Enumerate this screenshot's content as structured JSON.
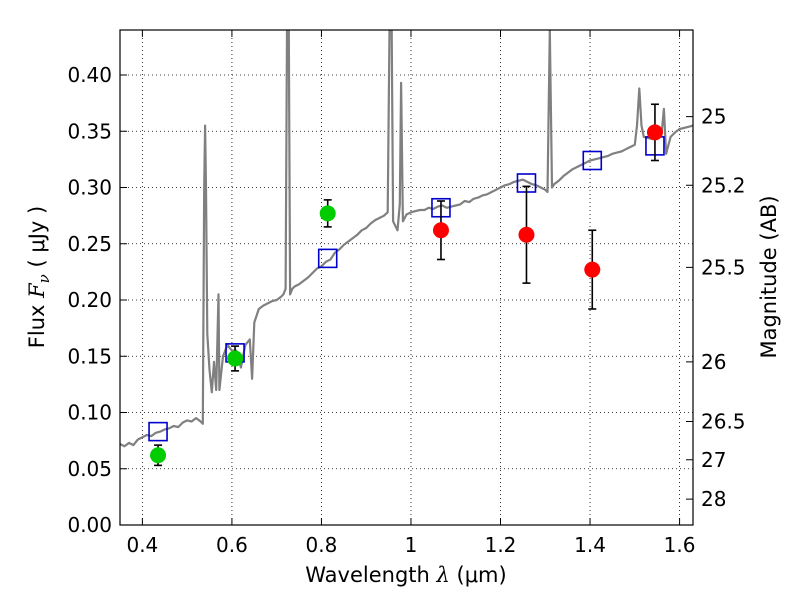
{
  "chart_data": {
    "type": "scatter",
    "xlabel": {
      "prefix": "Wavelength  ",
      "symbol": "λ",
      "unit": " (μm)"
    },
    "ylabel": {
      "prefix": "Flux  ",
      "symbol": "F",
      "subscript": "ν",
      "unit": "  ( μJy )"
    },
    "y2label": "Magnitude (AB)",
    "xlim": [
      0.35,
      1.63
    ],
    "ylim": [
      0.0,
      0.44
    ],
    "xticks": [
      0.4,
      0.6,
      0.8,
      1.0,
      1.2,
      1.4,
      1.6
    ],
    "xtick_labels": [
      "0.4",
      "0.6",
      "0.8",
      "1",
      "1.2",
      "1.4",
      "1.6"
    ],
    "yticks": [
      0.0,
      0.05,
      0.1,
      0.15,
      0.2,
      0.25,
      0.3,
      0.35,
      0.4
    ],
    "ytick_labels": [
      "0.00",
      "0.05",
      "0.10",
      "0.15",
      "0.20",
      "0.25",
      "0.30",
      "0.35",
      "0.40"
    ],
    "y2ticks": [
      {
        "label": "25",
        "flux": 0.363
      },
      {
        "label": "25.2",
        "flux": 0.302
      },
      {
        "label": "25.5",
        "flux": 0.229
      },
      {
        "label": "26",
        "flux": 0.145
      },
      {
        "label": "26.5",
        "flux": 0.092
      },
      {
        "label": "27",
        "flux": 0.058
      },
      {
        "label": "28",
        "flux": 0.023
      }
    ],
    "grid": true,
    "series": [
      {
        "kind": "spectrum",
        "color": "#808080",
        "points": [
          [
            0.35,
            0.072
          ],
          [
            0.36,
            0.07
          ],
          [
            0.37,
            0.073
          ],
          [
            0.38,
            0.071
          ],
          [
            0.39,
            0.076
          ],
          [
            0.4,
            0.078
          ],
          [
            0.41,
            0.08
          ],
          [
            0.42,
            0.079
          ],
          [
            0.43,
            0.082
          ],
          [
            0.44,
            0.083
          ],
          [
            0.45,
            0.085
          ],
          [
            0.46,
            0.086
          ],
          [
            0.47,
            0.088
          ],
          [
            0.48,
            0.087
          ],
          [
            0.49,
            0.091
          ],
          [
            0.5,
            0.093
          ],
          [
            0.51,
            0.092
          ],
          [
            0.52,
            0.095
          ],
          [
            0.53,
            0.092
          ],
          [
            0.535,
            0.09
          ],
          [
            0.538,
            0.3
          ],
          [
            0.54,
            0.355
          ],
          [
            0.542,
            0.3
          ],
          [
            0.545,
            0.17
          ],
          [
            0.55,
            0.138
          ],
          [
            0.555,
            0.118
          ],
          [
            0.56,
            0.145
          ],
          [
            0.565,
            0.12
          ],
          [
            0.57,
            0.205
          ],
          [
            0.572,
            0.12
          ],
          [
            0.58,
            0.15
          ],
          [
            0.59,
            0.16
          ],
          [
            0.6,
            0.155
          ],
          [
            0.61,
            0.155
          ],
          [
            0.62,
            0.14
          ],
          [
            0.63,
            0.16
          ],
          [
            0.64,
            0.165
          ],
          [
            0.645,
            0.13
          ],
          [
            0.65,
            0.18
          ],
          [
            0.66,
            0.192
          ],
          [
            0.67,
            0.195
          ],
          [
            0.68,
            0.197
          ],
          [
            0.69,
            0.199
          ],
          [
            0.7,
            0.2
          ],
          [
            0.71,
            0.203
          ],
          [
            0.715,
            0.205
          ],
          [
            0.72,
            0.21
          ],
          [
            0.723,
            0.44
          ],
          [
            0.727,
            0.44
          ],
          [
            0.73,
            0.205
          ],
          [
            0.735,
            0.21
          ],
          [
            0.74,
            0.212
          ],
          [
            0.75,
            0.214
          ],
          [
            0.76,
            0.217
          ],
          [
            0.77,
            0.22
          ],
          [
            0.78,
            0.224
          ],
          [
            0.79,
            0.228
          ],
          [
            0.8,
            0.23
          ],
          [
            0.81,
            0.234
          ],
          [
            0.82,
            0.236
          ],
          [
            0.83,
            0.242
          ],
          [
            0.84,
            0.245
          ],
          [
            0.85,
            0.249
          ],
          [
            0.86,
            0.252
          ],
          [
            0.87,
            0.255
          ],
          [
            0.88,
            0.258
          ],
          [
            0.89,
            0.262
          ],
          [
            0.9,
            0.264
          ],
          [
            0.91,
            0.268
          ],
          [
            0.92,
            0.271
          ],
          [
            0.93,
            0.273
          ],
          [
            0.94,
            0.275
          ],
          [
            0.948,
            0.278
          ],
          [
            0.952,
            0.44
          ],
          [
            0.957,
            0.44
          ],
          [
            0.96,
            0.27
          ],
          [
            0.97,
            0.262
          ],
          [
            0.975,
            0.285
          ],
          [
            0.978,
            0.393
          ],
          [
            0.982,
            0.27
          ],
          [
            0.99,
            0.276
          ],
          [
            1.0,
            0.278
          ],
          [
            1.01,
            0.279
          ],
          [
            1.02,
            0.28
          ],
          [
            1.03,
            0.28
          ],
          [
            1.04,
            0.282
          ],
          [
            1.05,
            0.281
          ],
          [
            1.06,
            0.283
          ],
          [
            1.07,
            0.284
          ],
          [
            1.08,
            0.282
          ],
          [
            1.09,
            0.283
          ],
          [
            1.1,
            0.284
          ],
          [
            1.11,
            0.285
          ],
          [
            1.12,
            0.288
          ],
          [
            1.13,
            0.287
          ],
          [
            1.14,
            0.29
          ],
          [
            1.15,
            0.291
          ],
          [
            1.16,
            0.293
          ],
          [
            1.17,
            0.294
          ],
          [
            1.18,
            0.296
          ],
          [
            1.19,
            0.298
          ],
          [
            1.2,
            0.3
          ],
          [
            1.21,
            0.302
          ],
          [
            1.22,
            0.303
          ],
          [
            1.23,
            0.305
          ],
          [
            1.24,
            0.306
          ],
          [
            1.25,
            0.307
          ],
          [
            1.26,
            0.305
          ],
          [
            1.27,
            0.303
          ],
          [
            1.28,
            0.302
          ],
          [
            1.29,
            0.3
          ],
          [
            1.3,
            0.298
          ],
          [
            1.305,
            0.296
          ],
          [
            1.31,
            0.44
          ],
          [
            1.315,
            0.3
          ],
          [
            1.32,
            0.303
          ],
          [
            1.33,
            0.306
          ],
          [
            1.34,
            0.31
          ],
          [
            1.35,
            0.313
          ],
          [
            1.36,
            0.316
          ],
          [
            1.37,
            0.318
          ],
          [
            1.38,
            0.32
          ],
          [
            1.39,
            0.322
          ],
          [
            1.4,
            0.324
          ],
          [
            1.41,
            0.325
          ],
          [
            1.42,
            0.326
          ],
          [
            1.43,
            0.327
          ],
          [
            1.44,
            0.328
          ],
          [
            1.45,
            0.33
          ],
          [
            1.46,
            0.331
          ],
          [
            1.47,
            0.332
          ],
          [
            1.48,
            0.334
          ],
          [
            1.49,
            0.336
          ],
          [
            1.5,
            0.338
          ],
          [
            1.505,
            0.355
          ],
          [
            1.51,
            0.388
          ],
          [
            1.515,
            0.355
          ],
          [
            1.52,
            0.345
          ],
          [
            1.53,
            0.344
          ],
          [
            1.54,
            0.343
          ],
          [
            1.55,
            0.346
          ],
          [
            1.56,
            0.349
          ],
          [
            1.565,
            0.37
          ],
          [
            1.57,
            0.33
          ],
          [
            1.58,
            0.345
          ],
          [
            1.59,
            0.349
          ],
          [
            1.6,
            0.352
          ],
          [
            1.61,
            0.353
          ],
          [
            1.62,
            0.354
          ],
          [
            1.63,
            0.355
          ]
        ]
      },
      {
        "kind": "open-square",
        "color": "#0000cc",
        "points": [
          {
            "x": 0.435,
            "y": 0.083
          },
          {
            "x": 0.607,
            "y": 0.153
          },
          {
            "x": 0.814,
            "y": 0.237
          },
          {
            "x": 1.067,
            "y": 0.282
          },
          {
            "x": 1.258,
            "y": 0.304
          },
          {
            "x": 1.405,
            "y": 0.324
          },
          {
            "x": 1.545,
            "y": 0.337
          }
        ]
      },
      {
        "kind": "filled-circle",
        "color": "#00cc00",
        "points": [
          {
            "x": 0.435,
            "y": 0.062,
            "err": 0.009
          },
          {
            "x": 0.607,
            "y": 0.148,
            "err": 0.011
          },
          {
            "x": 0.814,
            "y": 0.277,
            "err": 0.012
          }
        ]
      },
      {
        "kind": "filled-circle",
        "color": "#ff0000",
        "points": [
          {
            "x": 1.067,
            "y": 0.262,
            "err": 0.026
          },
          {
            "x": 1.258,
            "y": 0.258,
            "err": 0.043
          },
          {
            "x": 1.405,
            "y": 0.227,
            "err": 0.035
          },
          {
            "x": 1.545,
            "y": 0.349,
            "err": 0.025
          }
        ]
      }
    ]
  }
}
